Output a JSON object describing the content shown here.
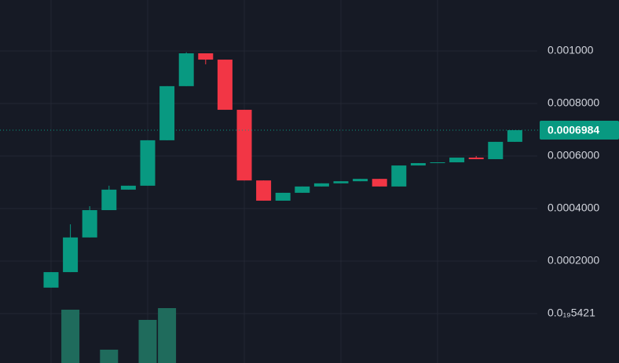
{
  "chart_data": {
    "type": "candlestick",
    "up_color": "#089981",
    "down_color": "#f23645",
    "open": [
      9.9e-05,
      0.000158,
      0.00029,
      0.000394,
      0.000472,
      0.000487,
      0.00066,
      0.000866,
      0.000991,
      0.000967,
      0.000776,
      0.000507,
      0.00043,
      0.00046,
      0.000484,
      0.000496,
      0.000504,
      0.000513,
      0.000484,
      0.000564,
      0.000573,
      0.000576,
      0.000594,
      0.000588,
      0.000654
    ],
    "high": [
      0.000158,
      0.00034,
      0.000409,
      0.000487,
      0.000487,
      0.00066,
      0.000866,
      0.000995,
      0.000991,
      0.000967,
      0.000776,
      0.000507,
      0.00046,
      0.000484,
      0.000496,
      0.000504,
      0.000513,
      0.000513,
      0.000564,
      0.000573,
      0.000576,
      0.000594,
      0.0006,
      0.000654,
      0.0006984
    ],
    "low": [
      9.9e-05,
      0.000158,
      0.00029,
      0.000394,
      0.000472,
      0.000487,
      0.00066,
      0.000866,
      0.000949,
      0.000776,
      0.000507,
      0.00043,
      0.00043,
      0.00046,
      0.000484,
      0.000496,
      0.000504,
      0.000484,
      0.000484,
      0.000564,
      0.000573,
      0.000576,
      0.000588,
      0.000588,
      0.000654
    ],
    "close": [
      0.000158,
      0.00029,
      0.000394,
      0.000472,
      0.000487,
      0.00066,
      0.000866,
      0.000991,
      0.000967,
      0.000776,
      0.000507,
      0.00043,
      0.00046,
      0.000484,
      0.000496,
      0.000504,
      0.000513,
      0.000484,
      0.000564,
      0.000573,
      0.000576,
      0.000594,
      0.000588,
      0.000654,
      0.0006984
    ],
    "volume": [
      null,
      68,
      null,
      17,
      null,
      55,
      70,
      null,
      null,
      null,
      null,
      null,
      null,
      null,
      null,
      null,
      null,
      null,
      null,
      null,
      null,
      null,
      null,
      null,
      null
    ],
    "last_price": 0.0006984,
    "ylim": [
      -0.000188,
      0.001194
    ],
    "yticks": [
      {
        "value": 5.421e-20,
        "label": "0.0₁₉5421"
      },
      {
        "value": 0.0002,
        "label": "0.0002000"
      },
      {
        "value": 0.0004,
        "label": "0.0004000"
      },
      {
        "value": 0.0006,
        "label": "0.0006000"
      },
      {
        "value": 0.0008,
        "label": "0.0008000"
      },
      {
        "value": 0.001,
        "label": "0.001000"
      }
    ],
    "grid": true
  }
}
